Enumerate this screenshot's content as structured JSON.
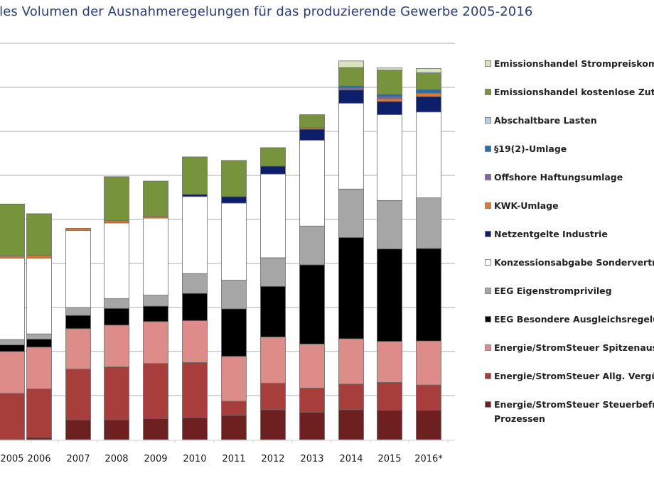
{
  "chart_data": {
    "type": "bar",
    "stacked": true,
    "title": "lles Volumen der Ausnahmeregelungen für das produzierende Gewerbe 2005-2016",
    "xlabel": "",
    "ylabel": "",
    "ylim": [
      0,
      9
    ],
    "y_gridlines": [
      1,
      2,
      3,
      4,
      5,
      6,
      7,
      8,
      9
    ],
    "grid": true,
    "legend_position": "right",
    "categories": [
      "2005",
      "2006",
      "2007",
      "2008",
      "2009",
      "2010",
      "2011",
      "2012",
      "2013",
      "2014",
      "2015",
      "2016*"
    ],
    "series": [
      {
        "name": "Energie/StromSteuer Steuerbefreiung Prozessen",
        "color": "#6e1f1f",
        "values": [
          0.0,
          0.05,
          0.45,
          0.45,
          0.48,
          0.5,
          0.55,
          0.68,
          0.62,
          0.68,
          0.67,
          0.67
        ]
      },
      {
        "name": "Energie/StromSteuer Allg. Vergünstigung",
        "color": "#a83e3c",
        "values": [
          1.05,
          1.1,
          1.15,
          1.2,
          1.25,
          1.25,
          0.32,
          0.6,
          0.55,
          0.58,
          0.63,
          0.57
        ]
      },
      {
        "name": "Energie/StromSteuer Spitzenausgleich",
        "color": "#dd8c8a",
        "values": [
          0.95,
          0.95,
          0.92,
          0.95,
          0.95,
          0.95,
          1.02,
          1.05,
          1.0,
          1.03,
          0.93,
          1.0
        ]
      },
      {
        "name": "EEG Besondere Ausgleichsregelung",
        "color": "#000000",
        "values": [
          0.15,
          0.18,
          0.3,
          0.38,
          0.35,
          0.62,
          1.08,
          1.15,
          1.8,
          2.3,
          2.1,
          2.1
        ]
      },
      {
        "name": "EEG Eigenstromprivileg",
        "color": "#a6a6a6",
        "values": [
          0.12,
          0.12,
          0.18,
          0.22,
          0.25,
          0.45,
          0.65,
          0.65,
          0.88,
          1.1,
          1.1,
          1.15
        ]
      },
      {
        "name": "Konzessionsabgabe Sonderverträge",
        "color": "#ffffff",
        "values": [
          1.85,
          1.72,
          1.75,
          1.72,
          1.75,
          1.75,
          1.75,
          1.9,
          1.95,
          1.95,
          1.95,
          1.95
        ]
      },
      {
        "name": "Netzentgelte Industrie",
        "color": "#0d1f6b",
        "values": [
          0.0,
          0.0,
          0.0,
          0.0,
          0.0,
          0.05,
          0.15,
          0.18,
          0.25,
          0.3,
          0.3,
          0.35
        ]
      },
      {
        "name": "KWK-Umlage",
        "color": "#e3762b",
        "values": [
          0.05,
          0.06,
          0.05,
          0.05,
          0.04,
          0.0,
          0.0,
          0.0,
          0.03,
          0.0,
          0.06,
          0.08
        ]
      },
      {
        "name": "Offshore Haftungsumlage",
        "color": "#8064a2",
        "values": [
          0.0,
          0.0,
          0.0,
          0.0,
          0.0,
          0.0,
          0.0,
          0.0,
          0.0,
          0.05,
          0.05,
          0.0
        ]
      },
      {
        "name": "§19(2)-Umlage",
        "color": "#1f6fb5",
        "values": [
          0.0,
          0.0,
          0.0,
          0.0,
          0.0,
          0.0,
          0.0,
          0.0,
          0.0,
          0.04,
          0.05,
          0.08
        ]
      },
      {
        "name": "Abschaltbare Lasten",
        "color": "#b8cce4",
        "values": [
          0.0,
          0.0,
          0.0,
          0.0,
          0.0,
          0.0,
          0.0,
          0.0,
          0.0,
          0.0,
          0.0,
          0.0
        ]
      },
      {
        "name": "Emissionshandel kostenlose Zuteilung",
        "color": "#77933c",
        "values": [
          1.18,
          0.95,
          0.0,
          1.0,
          0.8,
          0.85,
          0.82,
          0.42,
          0.3,
          0.42,
          0.55,
          0.38
        ]
      },
      {
        "name": "Emissionshandel Strompreiskompensation",
        "color": "#d7e4bc",
        "values": [
          0.0,
          0.0,
          0.0,
          0.0,
          0.0,
          0.0,
          0.0,
          0.0,
          0.0,
          0.15,
          0.05,
          0.1
        ]
      }
    ]
  },
  "legend": {
    "items": [
      {
        "label": "Emissionshandel Strompreiskompensation",
        "color": "#d7e4bc"
      },
      {
        "label": "Emissionshandel kostenlose Zuteilung",
        "color": "#77933c"
      },
      {
        "label": "Abschaltbare Lasten",
        "color": "#b8cce4"
      },
      {
        "label": "§19(2)-Umlage",
        "color": "#1f6fb5"
      },
      {
        "label": "Offshore Haftungsumlage",
        "color": "#8064a2"
      },
      {
        "label": "KWK-Umlage",
        "color": "#e3762b"
      },
      {
        "label": "Netzentgelte Industrie",
        "color": "#0d1f6b"
      },
      {
        "label": "Konzessionsabgabe Sonderverträge",
        "color": "#ffffff"
      },
      {
        "label": "EEG Eigenstromprivileg",
        "color": "#a6a6a6"
      },
      {
        "label": "EEG Besondere Ausgleichsregelung",
        "color": "#000000"
      },
      {
        "label": "Energie/StromSteuer Spitzenausgleich",
        "color": "#dd8c8a"
      },
      {
        "label": "Energie/StromSteuer Allg. Vergünstigung",
        "color": "#a83e3c"
      },
      {
        "label": "Energie/StromSteuer Steuerbefreiung",
        "label2": "Prozessen",
        "color": "#6e1f1f"
      }
    ]
  }
}
